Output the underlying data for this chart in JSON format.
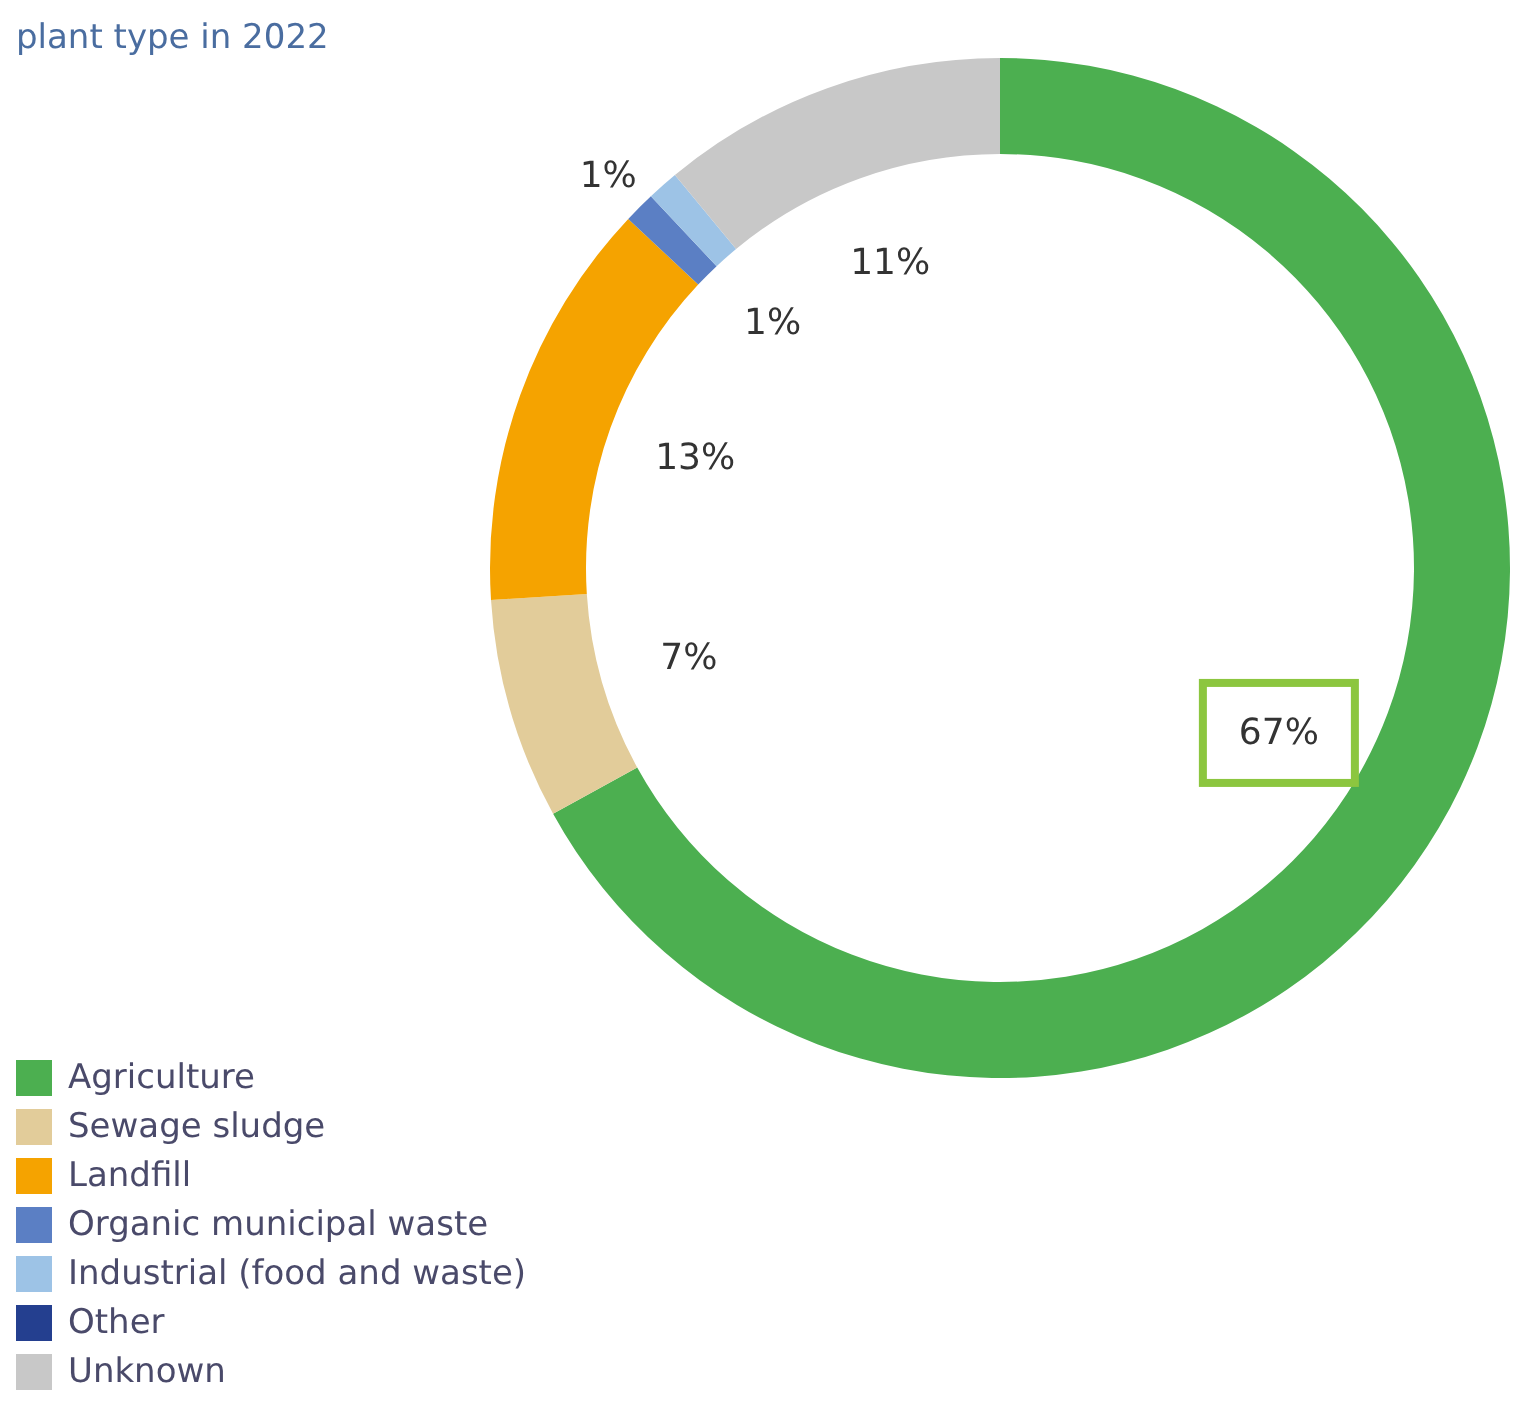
{
  "chart_data": {
    "type": "donut",
    "title": "plant type in 2022",
    "categories": [
      "Agriculture",
      "Sewage sludge",
      "Landfill",
      "Organic municipal waste",
      "Industrial (food and waste)",
      "Other",
      "Unknown"
    ],
    "values": [
      67,
      7,
      13,
      1,
      1,
      0,
      11
    ],
    "value_labels": [
      "67%",
      "7%",
      "13%",
      "1%",
      "1%",
      null,
      "11%"
    ],
    "colors": [
      "#4caf50",
      "#e2cc9a",
      "#f5a300",
      "#5b7fc4",
      "#9dc3e6",
      "#243f8f",
      "#c8c8c8"
    ],
    "legend": "bottom left"
  }
}
